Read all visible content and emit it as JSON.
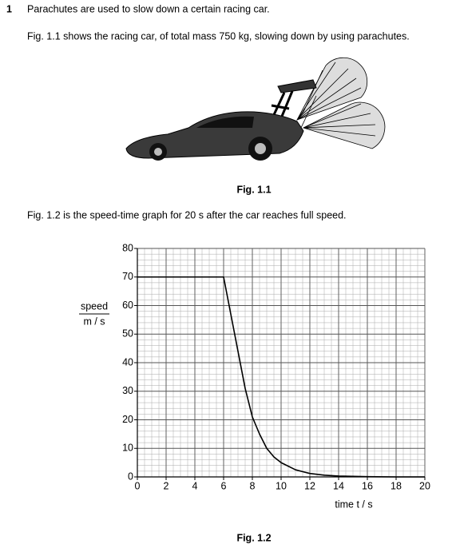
{
  "question": {
    "number": "1",
    "intro": "Parachutes are used to slow down a certain racing car.",
    "fig1_text": "Fig. 1.1 shows the racing car, of total mass 750 kg, slowing down by using parachutes.",
    "fig1_caption": "Fig. 1.1",
    "fig2_text": "Fig. 1.2 is the speed-time graph for 20 s after the car reaches full speed.",
    "fig2_caption": "Fig. 1.2"
  },
  "chart_data": {
    "type": "line",
    "ylabel": [
      "speed",
      "m / s"
    ],
    "xlabel": "time t / s",
    "x": [
      0,
      6,
      6.5,
      7,
      7.5,
      8,
      8.5,
      9,
      9.5,
      10,
      11,
      12,
      13,
      14,
      16,
      18,
      20
    ],
    "values": [
      70,
      70,
      57,
      44,
      31,
      21,
      15,
      10,
      7,
      5,
      2.5,
      1.2,
      0.6,
      0.3,
      0.1,
      0,
      0
    ],
    "color": "#000000",
    "xlim": [
      0,
      20
    ],
    "ylim": [
      0,
      80
    ],
    "xticks": [
      0,
      2,
      4,
      6,
      8,
      10,
      12,
      14,
      16,
      18,
      20
    ],
    "yticks": [
      0,
      10,
      20,
      30,
      40,
      50,
      60,
      70,
      80
    ],
    "minor_step": [
      0.5,
      2
    ],
    "grid": true
  }
}
